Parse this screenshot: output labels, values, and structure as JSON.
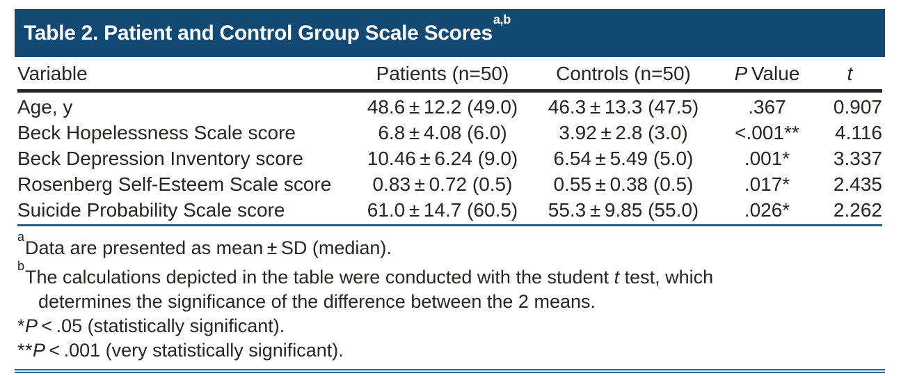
{
  "colors": {
    "title_bar_bg": "#124A73",
    "title_text": "#ffffff",
    "body_text": "#282625",
    "header_rule": "#2B2928",
    "blue_rule": "#1F618C",
    "bottom_rule": "#266B95"
  },
  "title": {
    "text": "Table 2. Patient and Control Group Scale Scores",
    "superscript": "a,b"
  },
  "table": {
    "header": {
      "variable": "Variable",
      "patients": "Patients (n=50)",
      "controls": "Controls (n=50)",
      "p_italic": "P",
      "p_rest": " Value",
      "t": "t"
    },
    "rows": [
      {
        "variable": "Age, y",
        "patients": "48.6 ± 12.2 (49.0)",
        "controls": "46.3 ± 13.3 (47.5)",
        "p": ".367",
        "t": "0.907"
      },
      {
        "variable": "Beck Hopelessness Scale score",
        "patients": "6.8 ± 4.08 (6.0)",
        "controls": "3.92 ± 2.8 (3.0)",
        "p": "<.001**",
        "t": "4.116"
      },
      {
        "variable": "Beck Depression Inventory score",
        "patients": "10.46 ± 6.24 (9.0)",
        "controls": "6.54 ± 5.49 (5.0)",
        "p": ".001*",
        "t": "3.337"
      },
      {
        "variable": "Rosenberg Self-Esteem Scale score",
        "patients": "0.83 ± 0.72 (0.5)",
        "controls": "0.55 ± 0.38 (0.5)",
        "p": ".017*",
        "t": "2.435"
      },
      {
        "variable": "Suicide Probability Scale score",
        "patients": "61.0 ± 14.7 (60.5)",
        "controls": "55.3 ± 9.85 (55.0)",
        "p": ".026*",
        "t": "2.262"
      }
    ]
  },
  "footnotes": {
    "a_sup": "a",
    "a_text": "Data are presented as mean ± SD (median).",
    "b_sup": "b",
    "b_line1_pre": "The calculations depicted in the table were conducted with the student ",
    "b_italic": "t",
    "b_line1_post": " test, which",
    "b_line2": "determines the significance of the difference between the 2 means.",
    "s1_stars": "*",
    "s1_p": "P",
    "s1_text": " < .05 (statistically significant).",
    "s2_stars": "**",
    "s2_p": "P",
    "s2_text": " < .001 (very statistically significant)."
  }
}
